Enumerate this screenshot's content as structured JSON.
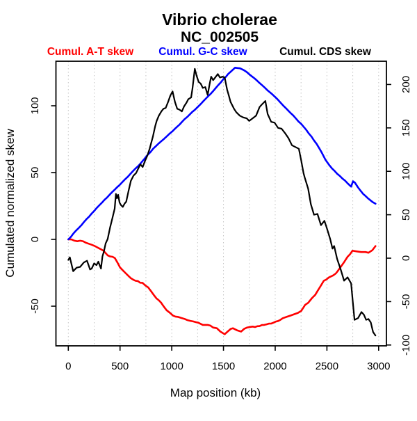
{
  "chart_data": {
    "type": "line",
    "title": "Vibrio cholerae",
    "subtitle": "NC_002505",
    "xlabel": "Map position (kb)",
    "ylabel_left": "Cumulated normalized skew",
    "x_axis": {
      "ticks": [
        0,
        500,
        1000,
        1500,
        2000,
        2500,
        3000
      ],
      "gridline_step": 250,
      "gridline_max": 3000,
      "range": [
        0,
        3000
      ]
    },
    "left_axis": {
      "ticks": [
        100,
        50,
        0,
        -50
      ],
      "range": [
        -80,
        133
      ]
    },
    "right_axis": {
      "ticks": [
        200,
        150,
        100,
        50,
        0,
        -50,
        -100
      ],
      "range": [
        -101,
        227
      ]
    },
    "grid": "vertical-dotted",
    "legend_position": "top",
    "series": [
      {
        "name": "Cumul. A-T skew",
        "color": "#ff0000",
        "axis": "left",
        "jitter": 0.9,
        "points": [
          [
            0,
            0
          ],
          [
            60,
            -1
          ],
          [
            114,
            -1
          ],
          [
            170,
            -2.5
          ],
          [
            226,
            -4
          ],
          [
            280,
            -6
          ],
          [
            339,
            -8.5
          ],
          [
            381,
            -12
          ],
          [
            450,
            -14
          ],
          [
            500,
            -21
          ],
          [
            550,
            -25
          ],
          [
            583,
            -27.5
          ],
          [
            650,
            -31
          ],
          [
            717,
            -32.5
          ],
          [
            773,
            -36
          ],
          [
            830,
            -42
          ],
          [
            898,
            -47.5
          ],
          [
            950,
            -53
          ],
          [
            1011,
            -57
          ],
          [
            1060,
            -58
          ],
          [
            1122,
            -59.5
          ],
          [
            1180,
            -61
          ],
          [
            1234,
            -62
          ],
          [
            1300,
            -64
          ],
          [
            1347,
            -64
          ],
          [
            1400,
            -66
          ],
          [
            1436,
            -66.5
          ],
          [
            1470,
            -69
          ],
          [
            1512,
            -71
          ],
          [
            1540,
            -69
          ],
          [
            1570,
            -67
          ],
          [
            1591,
            -66.5
          ],
          [
            1630,
            -68
          ],
          [
            1670,
            -69
          ],
          [
            1700,
            -67
          ],
          [
            1760,
            -65.5
          ],
          [
            1827,
            -65
          ],
          [
            1894,
            -64
          ],
          [
            1961,
            -63
          ],
          [
            2006,
            -61.5
          ],
          [
            2073,
            -59
          ],
          [
            2110,
            -58
          ],
          [
            2150,
            -57
          ],
          [
            2185,
            -56
          ],
          [
            2220,
            -55
          ],
          [
            2252,
            -53.5
          ],
          [
            2290,
            -49
          ],
          [
            2319,
            -47.5
          ],
          [
            2355,
            -44
          ],
          [
            2387,
            -41.5
          ],
          [
            2431,
            -36
          ],
          [
            2470,
            -31
          ],
          [
            2519,
            -28.5
          ],
          [
            2560,
            -27
          ],
          [
            2586,
            -25.5
          ],
          [
            2630,
            -21
          ],
          [
            2667,
            -17
          ],
          [
            2700,
            -13
          ],
          [
            2747,
            -8.5
          ],
          [
            2790,
            -9
          ],
          [
            2830,
            -9.5
          ],
          [
            2873,
            -9.5
          ],
          [
            2902,
            -10
          ],
          [
            2940,
            -8
          ],
          [
            2970,
            -5
          ]
        ]
      },
      {
        "name": "Cumul. G-C skew",
        "color": "#0000ff",
        "axis": "left",
        "jitter": 0.5,
        "points": [
          [
            0,
            0
          ],
          [
            100,
            8.5
          ],
          [
            200,
            17
          ],
          [
            300,
            25.5
          ],
          [
            400,
            33.5
          ],
          [
            500,
            41
          ],
          [
            600,
            49
          ],
          [
            700,
            57
          ],
          [
            764,
            63
          ],
          [
            850,
            70
          ],
          [
            950,
            77
          ],
          [
            1008,
            81
          ],
          [
            1100,
            88
          ],
          [
            1200,
            95.5
          ],
          [
            1250,
            99
          ],
          [
            1300,
            103
          ],
          [
            1400,
            111
          ],
          [
            1500,
            120
          ],
          [
            1570,
            125.5
          ],
          [
            1612,
            128.5
          ],
          [
            1660,
            128
          ],
          [
            1700,
            126.5
          ],
          [
            1750,
            123.5
          ],
          [
            1800,
            120.5
          ],
          [
            1850,
            117
          ],
          [
            1900,
            113.5
          ],
          [
            1950,
            110
          ],
          [
            2000,
            106.5
          ],
          [
            2050,
            102.5
          ],
          [
            2100,
            98.5
          ],
          [
            2150,
            94.5
          ],
          [
            2200,
            90.5
          ],
          [
            2250,
            86.5
          ],
          [
            2300,
            82
          ],
          [
            2350,
            77
          ],
          [
            2400,
            71.5
          ],
          [
            2450,
            65
          ],
          [
            2487,
            59.5
          ],
          [
            2550,
            53
          ],
          [
            2600,
            49
          ],
          [
            2650,
            45.5
          ],
          [
            2700,
            42
          ],
          [
            2734,
            39.5
          ],
          [
            2752,
            43.5
          ],
          [
            2770,
            42.5
          ],
          [
            2800,
            39
          ],
          [
            2850,
            34
          ],
          [
            2900,
            30.5
          ],
          [
            2940,
            28
          ],
          [
            2970,
            26.7
          ]
        ]
      },
      {
        "name": "Cumul. CDS skew",
        "color": "#000000",
        "axis": "right",
        "jitter": 1.8,
        "points": [
          [
            0,
            -2
          ],
          [
            15,
            1
          ],
          [
            47,
            -15
          ],
          [
            80,
            -11
          ],
          [
            114,
            -10
          ],
          [
            150,
            -5
          ],
          [
            181,
            -3
          ],
          [
            210,
            -13
          ],
          [
            226,
            -12
          ],
          [
            250,
            -6
          ],
          [
            272,
            -8
          ],
          [
            290,
            -4
          ],
          [
            316,
            -12
          ],
          [
            330,
            2
          ],
          [
            345,
            8
          ],
          [
            361,
            17
          ],
          [
            380,
            22
          ],
          [
            403,
            35
          ],
          [
            426,
            46
          ],
          [
            448,
            57
          ],
          [
            460,
            74
          ],
          [
            470,
            69
          ],
          [
            482,
            73
          ],
          [
            495,
            64
          ],
          [
            510,
            61
          ],
          [
            527,
            59
          ],
          [
            545,
            63
          ],
          [
            560,
            65
          ],
          [
            583,
            78
          ],
          [
            605,
            89
          ],
          [
            630,
            95
          ],
          [
            655,
            98
          ],
          [
            680,
            104
          ],
          [
            697,
            108
          ],
          [
            719,
            105
          ],
          [
            742,
            112
          ],
          [
            764,
            118
          ],
          [
            786,
            126
          ],
          [
            818,
            140
          ],
          [
            840,
            152
          ],
          [
            854,
            158
          ],
          [
            875,
            164
          ],
          [
            900,
            169
          ],
          [
            920,
            172
          ],
          [
            941,
            173
          ],
          [
            965,
            180
          ],
          [
            986,
            187
          ],
          [
            1008,
            192
          ],
          [
            1031,
            180
          ],
          [
            1053,
            172
          ],
          [
            1075,
            171
          ],
          [
            1098,
            169
          ],
          [
            1120,
            175
          ],
          [
            1142,
            179
          ],
          [
            1160,
            183
          ],
          [
            1187,
            185
          ],
          [
            1200,
            195
          ],
          [
            1223,
            218
          ],
          [
            1240,
            210
          ],
          [
            1260,
            203
          ],
          [
            1280,
            201
          ],
          [
            1300,
            196
          ],
          [
            1324,
            197
          ],
          [
            1347,
            188
          ],
          [
            1365,
            200
          ],
          [
            1381,
            209
          ],
          [
            1400,
            205
          ],
          [
            1420,
            208
          ],
          [
            1445,
            212
          ],
          [
            1466,
            208
          ],
          [
            1490,
            209
          ],
          [
            1512,
            208
          ],
          [
            1535,
            194
          ],
          [
            1550,
            188
          ],
          [
            1568,
            180
          ],
          [
            1602,
            172
          ],
          [
            1624,
            168
          ],
          [
            1658,
            164
          ],
          [
            1692,
            162
          ],
          [
            1725,
            161
          ],
          [
            1748,
            158
          ],
          [
            1781,
            161
          ],
          [
            1815,
            164
          ],
          [
            1849,
            174
          ],
          [
            1871,
            177
          ],
          [
            1905,
            181
          ],
          [
            1927,
            166
          ],
          [
            1961,
            157
          ],
          [
            1994,
            156
          ],
          [
            2028,
            150
          ],
          [
            2062,
            149
          ],
          [
            2095,
            144
          ],
          [
            2129,
            138
          ],
          [
            2162,
            130
          ],
          [
            2196,
            128
          ],
          [
            2229,
            126
          ],
          [
            2252,
            112
          ],
          [
            2274,
            98
          ],
          [
            2285,
            93
          ],
          [
            2319,
            80
          ],
          [
            2345,
            62
          ],
          [
            2375,
            50
          ],
          [
            2409,
            51
          ],
          [
            2442,
            38
          ],
          [
            2476,
            43
          ],
          [
            2498,
            35
          ],
          [
            2532,
            22
          ],
          [
            2554,
            11
          ],
          [
            2570,
            14
          ],
          [
            2599,
            -1
          ],
          [
            2633,
            -13
          ],
          [
            2666,
            -26
          ],
          [
            2700,
            -22
          ],
          [
            2734,
            -29
          ],
          [
            2750,
            -50
          ],
          [
            2767,
            -71
          ],
          [
            2801,
            -69
          ],
          [
            2834,
            -62
          ],
          [
            2857,
            -65
          ],
          [
            2879,
            -71
          ],
          [
            2901,
            -70
          ],
          [
            2924,
            -74
          ],
          [
            2946,
            -85
          ],
          [
            2969,
            -89
          ]
        ]
      }
    ]
  }
}
